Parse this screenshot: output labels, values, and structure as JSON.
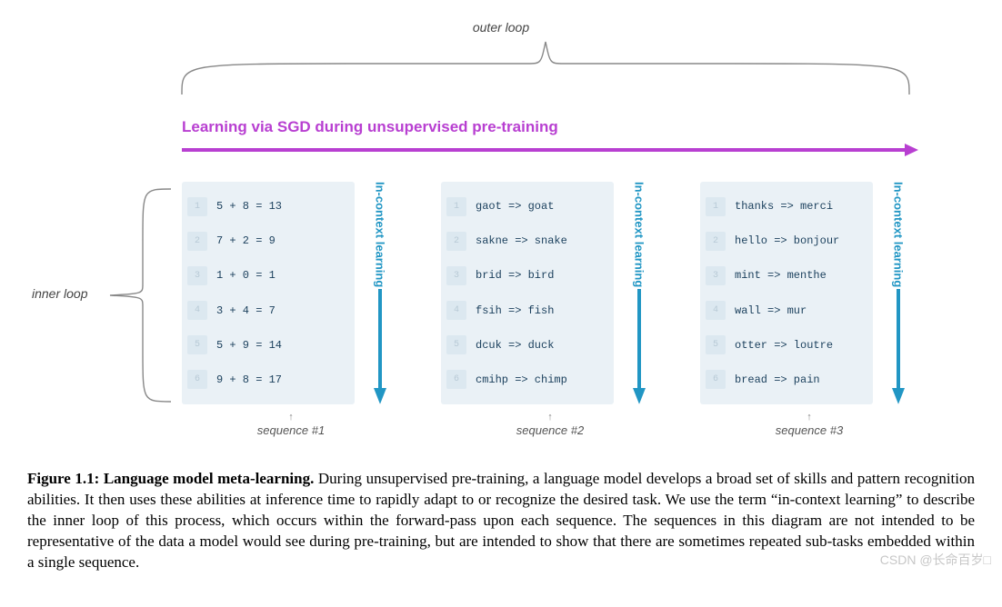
{
  "diagram": {
    "outer_loop_label": "outer loop",
    "inner_loop_label": "inner loop",
    "main_arrow": {
      "label": "Learning via SGD during unsupervised pre-training",
      "color": "#b83fd1",
      "stroke_width": 4
    },
    "in_context_arrow": {
      "label": "In-context learning",
      "color": "#2196c4",
      "stroke_width": 4
    },
    "brace_color": "#888888",
    "card_bg": "#eaf1f6",
    "line_num_bg": "#dce8f0",
    "line_num_color": "#b8cad6",
    "code_color": "#1a3f5c",
    "code_fontsize": 12,
    "label_fontsize": 14,
    "sequences": [
      {
        "footer": "sequence #1",
        "lines": [
          "5 + 8 = 13",
          "7 + 2 = 9",
          "1 + 0 = 1",
          "3 + 4 = 7",
          "5 + 9 = 14",
          "9 + 8 = 17"
        ]
      },
      {
        "footer": "sequence #2",
        "lines": [
          "gaot => goat",
          "sakne => snake",
          "brid => bird",
          "fsih => fish",
          "dcuk => duck",
          "cmihp => chimp"
        ]
      },
      {
        "footer": "sequence #3",
        "lines": [
          "thanks => merci",
          "hello => bonjour",
          "mint => menthe",
          "wall => mur",
          "otter => loutre",
          "bread => pain"
        ]
      }
    ]
  },
  "caption": {
    "label": "Figure 1.1: Language model meta-learning.",
    "body": "During unsupervised pre-training, a language model develops a broad set of skills and pattern recognition abilities. It then uses these abilities at inference time to rapidly adapt to or recognize the desired task. We use the term “in-context learning” to describe the inner loop of this process, which occurs within the forward-pass upon each sequence. The sequences in this diagram are not intended to be representative of the data a model would see during pre-training, but are intended to show that there are sometimes repeated sub-tasks embedded within a single sequence."
  },
  "watermark": "CSDN @长命百岁□"
}
